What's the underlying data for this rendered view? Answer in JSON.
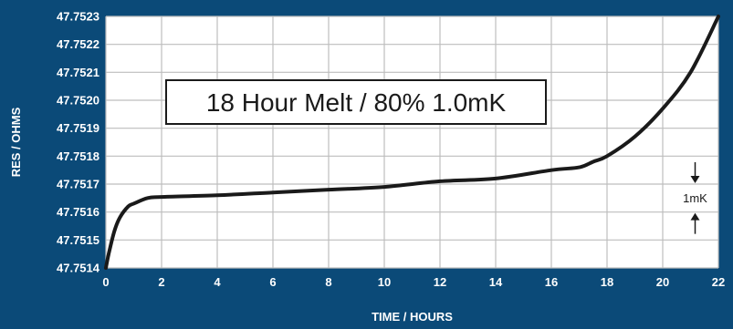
{
  "chart_data": {
    "type": "line",
    "title": "18 Hour Melt / 80% 1.0mK",
    "xlabel": "TIME / HOURS",
    "ylabel": "RES / OHMS",
    "xlim": [
      0,
      22
    ],
    "ylim": [
      47.7514,
      47.7523
    ],
    "x_ticks": [
      "0",
      "2",
      "4",
      "6",
      "8",
      "10",
      "12",
      "14",
      "16",
      "18",
      "20",
      "22"
    ],
    "y_ticks": [
      "47.7523",
      "47.7522",
      "47.7521",
      "47.7520",
      "47.7519",
      "47.7518",
      "47.7517",
      "47.7516",
      "47.7515",
      "47.7514"
    ],
    "grid": true,
    "series": [
      {
        "x": [
          0,
          0.1,
          0.3,
          0.5,
          0.8,
          1.0,
          1.5,
          2,
          4,
          6,
          8,
          10,
          12,
          14,
          16,
          17,
          17.5,
          18,
          19,
          20,
          21,
          22
        ],
        "y": [
          47.7514,
          47.75145,
          47.75153,
          47.75158,
          47.75162,
          47.75163,
          47.75165,
          47.751654,
          47.75166,
          47.75167,
          47.75168,
          47.75169,
          47.75171,
          47.75172,
          47.75175,
          47.75176,
          47.75178,
          47.7518,
          47.75187,
          47.75197,
          47.7521,
          47.7523
        ]
      }
    ],
    "annotation": {
      "label": "1mK",
      "from": 47.7516,
      "to": 47.7517,
      "x": 21
    },
    "colors": {
      "background": "#0b4a78",
      "plot": "#ffffff",
      "grid": "#bdbdbd",
      "line": "#1a1a1a",
      "text": "#ffffff"
    }
  }
}
